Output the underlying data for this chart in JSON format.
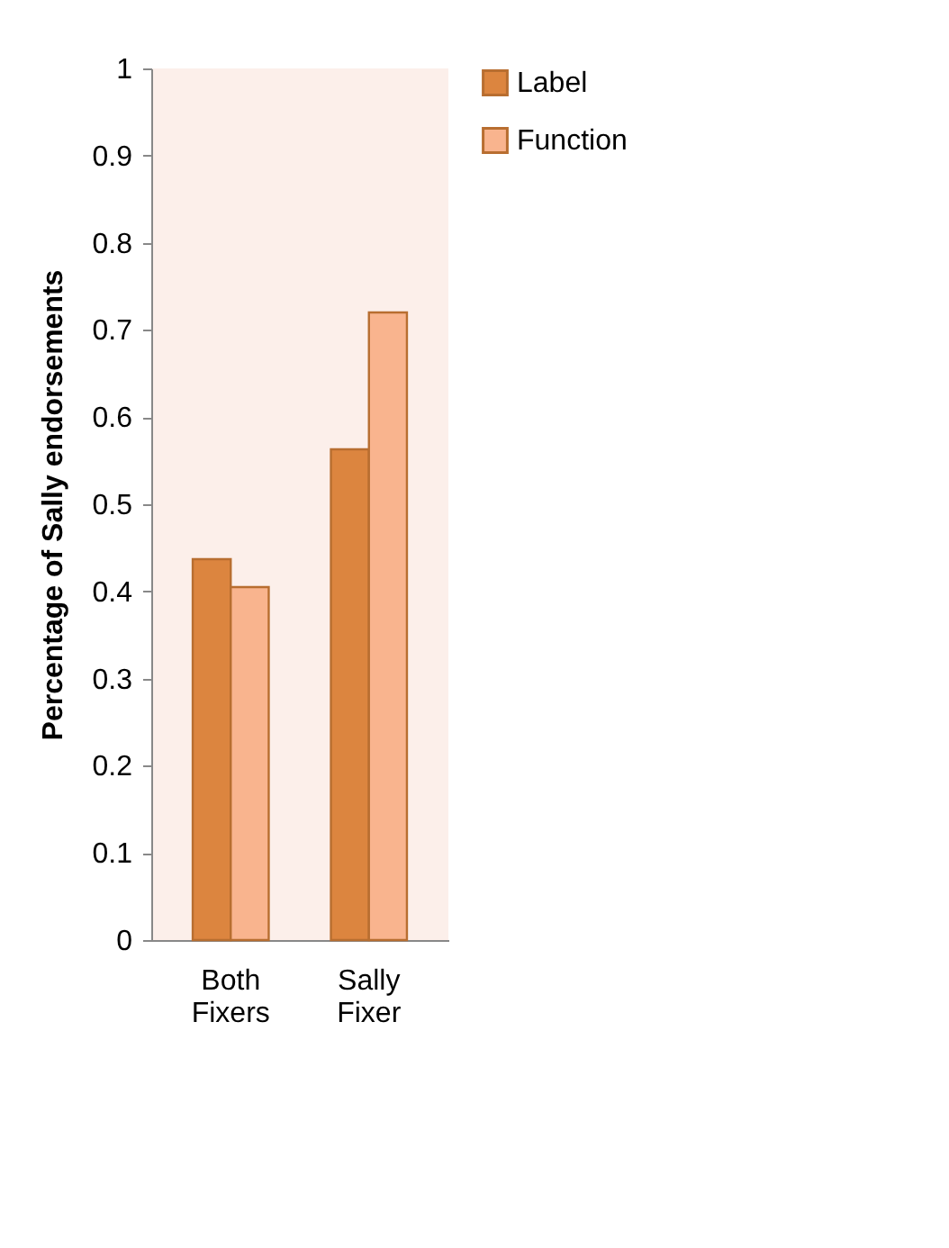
{
  "chart_data": {
    "type": "bar",
    "ylabel": "Percentage of Sally endorsements",
    "categories": [
      "Both Fixers",
      "Sally Fixer"
    ],
    "series": [
      {
        "name": "Label",
        "color": "#dc853f",
        "values": [
          0.437,
          0.563
        ]
      },
      {
        "name": "Function",
        "color": "#f9b48e",
        "values": [
          0.405,
          0.72
        ]
      }
    ],
    "ylim": [
      0,
      1
    ],
    "yticks": [
      0,
      0.1,
      0.2,
      0.3,
      0.4,
      0.5,
      0.6,
      0.7,
      0.8,
      0.9,
      1
    ],
    "grid": false,
    "legend": "right"
  }
}
